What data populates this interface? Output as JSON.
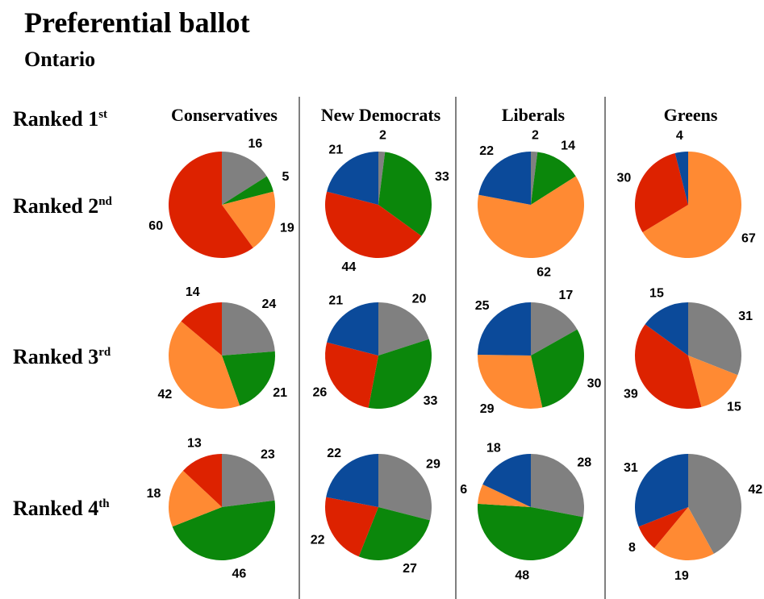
{
  "title": "Preferential ballot",
  "subtitle": "Ontario",
  "corner_label": {
    "text": "Ranked 1",
    "sup": "st"
  },
  "row_labels": [
    {
      "text": "Ranked 2",
      "sup": "nd"
    },
    {
      "text": "Ranked 3",
      "sup": "rd"
    },
    {
      "text": "Ranked 4",
      "sup": "th"
    }
  ],
  "chart_data": [
    {
      "type": "pie",
      "title": "Conservatives",
      "pies": [
        {
          "values": [
            16,
            5,
            19,
            60
          ],
          "colors": [
            "#808080",
            "#0b870b",
            "#ff8a33",
            "#dd2200"
          ]
        },
        {
          "values": [
            24,
            21,
            42,
            14
          ],
          "colors": [
            "#808080",
            "#0b870b",
            "#ff8a33",
            "#dd2200"
          ]
        },
        {
          "values": [
            23,
            46,
            18,
            13
          ],
          "colors": [
            "#808080",
            "#0b870b",
            "#ff8a33",
            "#dd2200"
          ]
        }
      ]
    },
    {
      "type": "pie",
      "title": "New Democrats",
      "pies": [
        {
          "values": [
            2,
            33,
            44,
            21
          ],
          "colors": [
            "#808080",
            "#0b870b",
            "#dd2200",
            "#0b4a9a"
          ]
        },
        {
          "values": [
            20,
            33,
            26,
            21
          ],
          "colors": [
            "#808080",
            "#0b870b",
            "#dd2200",
            "#0b4a9a"
          ]
        },
        {
          "values": [
            29,
            27,
            22,
            22
          ],
          "colors": [
            "#808080",
            "#0b870b",
            "#dd2200",
            "#0b4a9a"
          ]
        }
      ]
    },
    {
      "type": "pie",
      "title": "Liberals",
      "pies": [
        {
          "values": [
            2,
            14,
            62,
            22
          ],
          "colors": [
            "#808080",
            "#0b870b",
            "#ff8a33",
            "#0b4a9a"
          ]
        },
        {
          "values": [
            17,
            30,
            29,
            25
          ],
          "colors": [
            "#808080",
            "#0b870b",
            "#ff8a33",
            "#0b4a9a"
          ]
        },
        {
          "values": [
            28,
            48,
            6,
            18
          ],
          "colors": [
            "#808080",
            "#0b870b",
            "#ff8a33",
            "#0b4a9a"
          ]
        }
      ]
    },
    {
      "type": "pie",
      "title": "Greens",
      "pies": [
        {
          "values": [
            67,
            30,
            4
          ],
          "colors": [
            "#ff8a33",
            "#dd2200",
            "#0b4a9a"
          ]
        },
        {
          "values": [
            31,
            15,
            39,
            15
          ],
          "colors": [
            "#808080",
            "#ff8a33",
            "#dd2200",
            "#0b4a9a"
          ]
        },
        {
          "values": [
            42,
            19,
            8,
            31
          ],
          "colors": [
            "#808080",
            "#ff8a33",
            "#dd2200",
            "#0b4a9a"
          ]
        }
      ]
    }
  ]
}
